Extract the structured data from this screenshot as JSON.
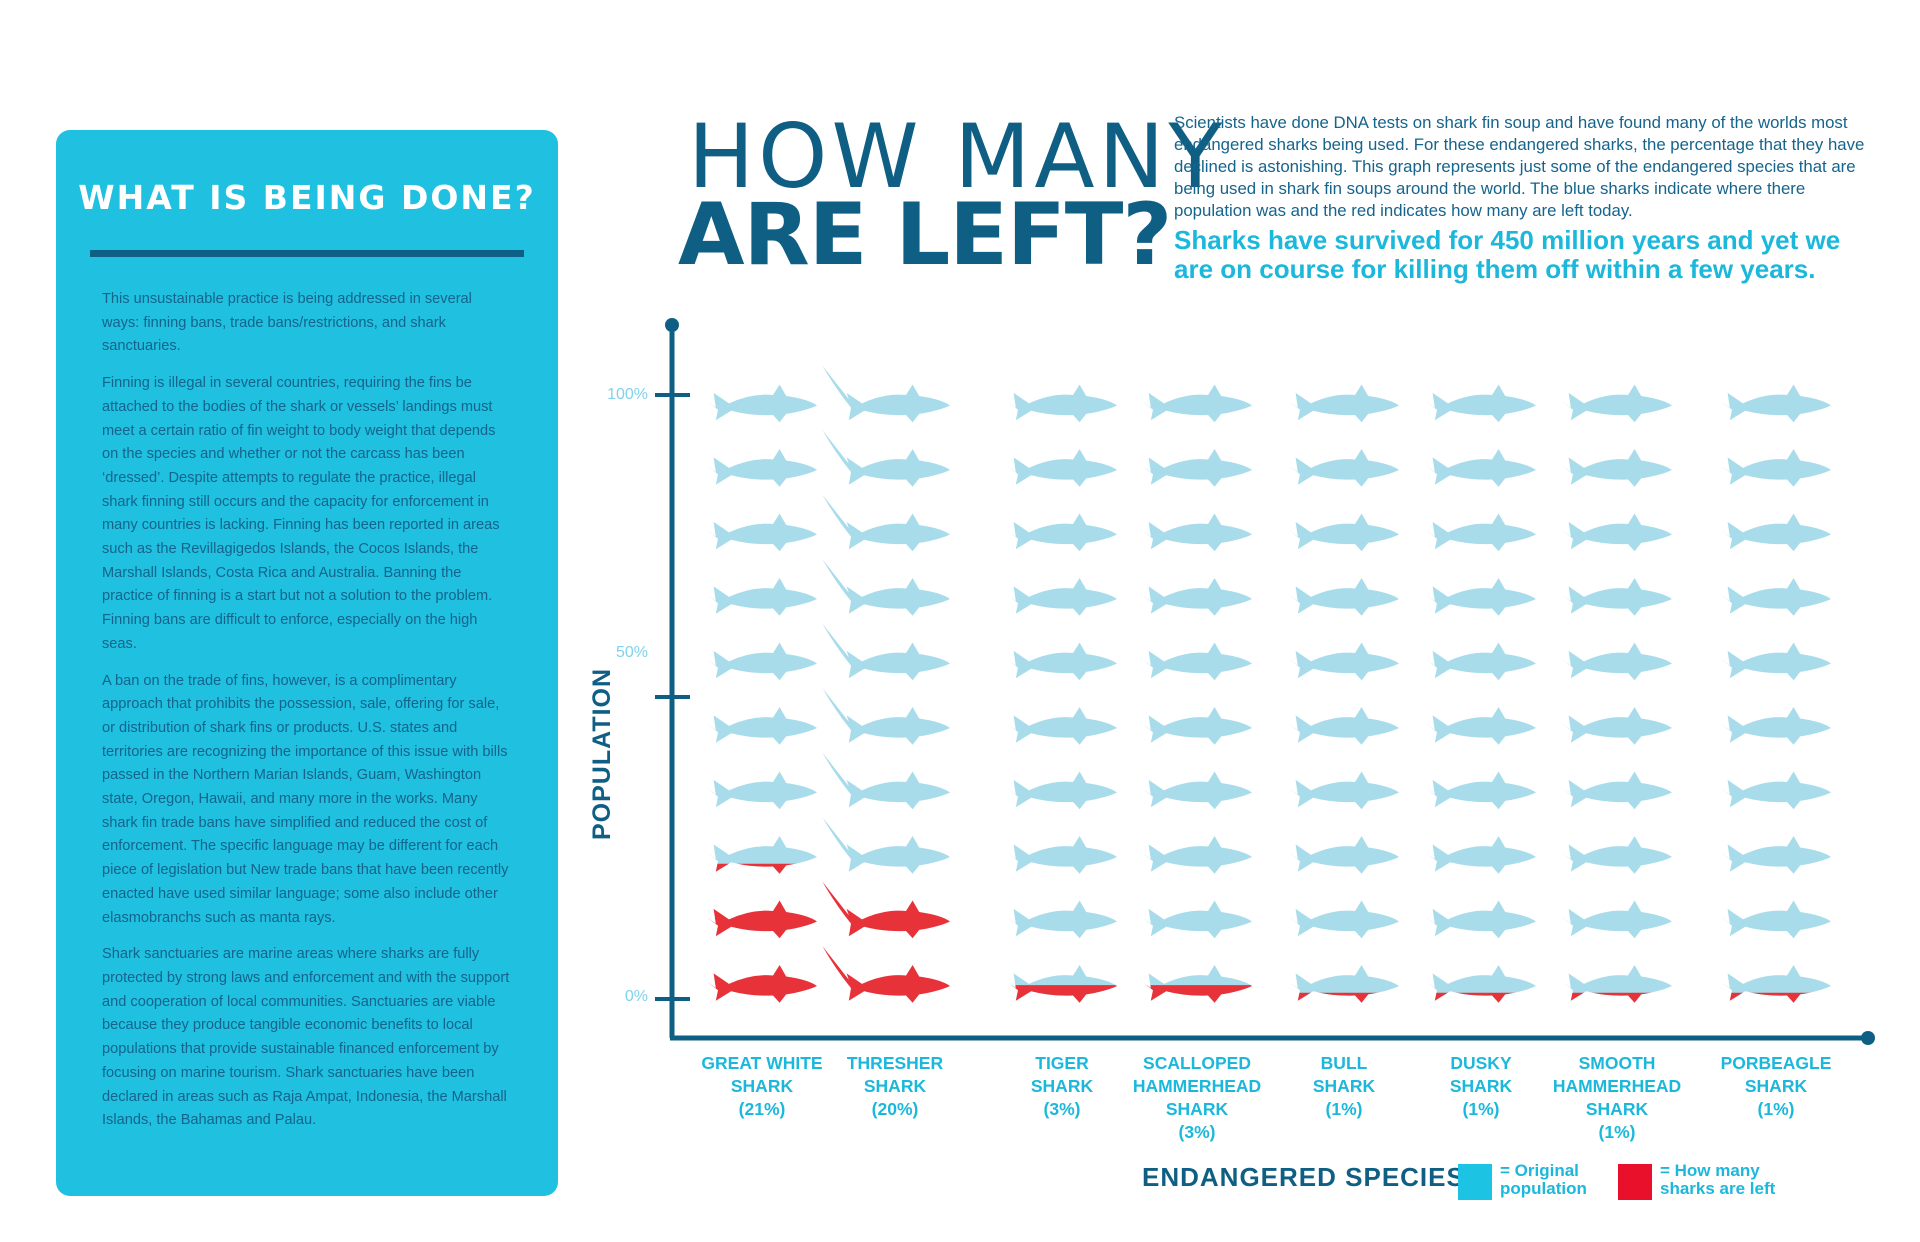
{
  "panel": {
    "title": "WHAT IS BEING DONE?",
    "paragraphs": [
      "This unsustainable practice is being addressed in several ways: finning bans, trade bans/restrictions, and shark sanctuaries.",
      "Finning is illegal in several countries, requiring the fins be attached to the bodies of the shark or vessels’ landings must meet a certain ratio of fin weight to body weight that depends on the species and whether or not the carcass has been ‘dressed’. Despite attempts to regulate the practice, illegal shark finning still occurs and the capacity for enforcement in many countries is lacking. Finning has been reported in areas such as the Revillagigedos Islands, the Cocos Islands, the Marshall Islands, Costa Rica and Australia. Banning the practice of finning is a start but not a solution to the problem. Finning bans are difficult to enforce, especially on the high seas.",
      "A ban on the trade of fins, however, is a complimentary approach that prohibits the possession, sale, offering for sale, or distribution of shark fins or products. U.S. states and territories are recognizing the importance of this issue with bills passed in the Northern Marian Islands, Guam, Washington state, Oregon, Hawaii, and many more in the works. Many shark fin trade bans have simplified and reduced the cost of enforcement. The specific language may be different for each piece of legislation but New trade bans that have been recently enacted have used similar language; some also include other elasmobranchs such as manta rays.",
      "Shark sanctuaries are marine areas where sharks are fully protected by strong laws and enforcement and with the support and cooperation of local communities. Sanctuaries are viable because they produce tangible economic benefits to local populations that provide sustainable financed enforcement by focusing on marine tourism. Shark sanctuaries have been declared in areas such as Raja Ampat, Indonesia, the Marshall Islands, the Bahamas and Palau."
    ]
  },
  "header": {
    "title_line1": "HOW MANY",
    "title_line2": "ARE LEFT?",
    "intro": "Scientists have done DNA tests on shark fin soup and have found many of the worlds most endangered sharks being used. For these endangered sharks, the percentage that they have declined is astonishing. This graph represents just some of the endangered species that are being used in shark fin soups around the world. The blue sharks indicate where there population was and the red indicates how many are left today.",
    "highlight": "Sharks have survived for 450 million years and yet we are on course for killing them off within a few years."
  },
  "chart_data": {
    "type": "pictograph",
    "ylabel": "POPULATION",
    "yticks": [
      "100%",
      "50%",
      "0%"
    ],
    "ylim": [
      0,
      100
    ],
    "xlabel": "ENDANGERED SPECIES",
    "icons_per_column": 10,
    "categories": [
      {
        "name": "GREAT WHITE SHARK",
        "label_lines": [
          "GREAT WHITE",
          "SHARK",
          "(21%)"
        ],
        "remaining": 21
      },
      {
        "name": "THRESHER SHARK",
        "label_lines": [
          "THRESHER",
          "SHARK",
          "(20%)"
        ],
        "remaining": 20
      },
      {
        "name": "TIGER SHARK",
        "label_lines": [
          "TIGER",
          "SHARK",
          "(3%)"
        ],
        "remaining": 3
      },
      {
        "name": "SCALLOPED HAMMERHEAD SHARK",
        "label_lines": [
          "SCALLOPED",
          "HAMMERHEAD",
          "SHARK",
          "(3%)"
        ],
        "remaining": 3
      },
      {
        "name": "BULL SHARK",
        "label_lines": [
          "BULL",
          "SHARK",
          "(1%)"
        ],
        "remaining": 1
      },
      {
        "name": "DUSKY SHARK",
        "label_lines": [
          "DUSKY",
          "SHARK",
          "(1%)"
        ],
        "remaining": 1
      },
      {
        "name": "SMOOTH HAMMERHEAD SHARK",
        "label_lines": [
          "SMOOTH",
          "HAMMERHEAD",
          "SHARK",
          "(1%)"
        ],
        "remaining": 1
      },
      {
        "name": "PORBEAGLE SHARK",
        "label_lines": [
          "PORBEAGLE",
          "SHARK",
          "(1%)"
        ],
        "remaining": 1
      }
    ],
    "legend": [
      {
        "label_lines": [
          "= Original",
          "population"
        ],
        "color": "#1cc3e3"
      },
      {
        "label_lines": [
          "= How many",
          "sharks are left"
        ],
        "color": "#e8102a"
      }
    ]
  },
  "colors": {
    "panel": "#1fc0e0",
    "dark": "#0f5f85",
    "accent": "#1cb8dc",
    "red": "#e8323a",
    "blue_top": "#a9dceb",
    "blue_bottom": "#1cc3e3"
  }
}
